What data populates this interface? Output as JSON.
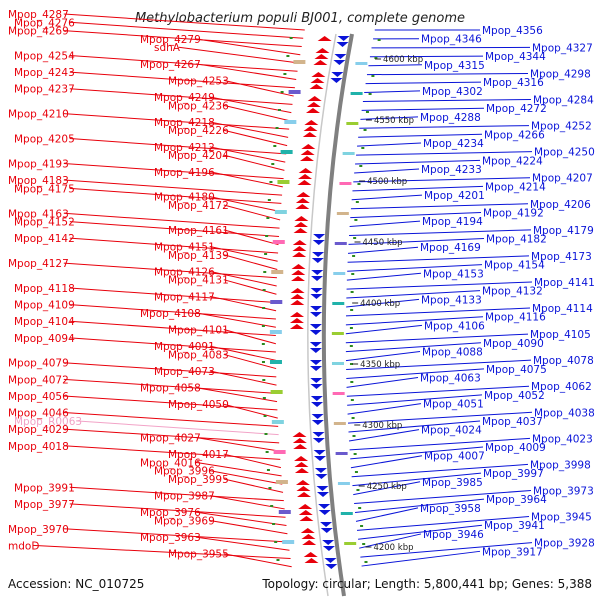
{
  "title": "Methylobacterium populi BJ001, complete genome",
  "footer": {
    "accession": "Accession: NC_010725",
    "summary": "Topology: circular; Length: 5,800,441 bp; Genes: 5,388"
  },
  "colors": {
    "left_strand": "#e8000b",
    "right_strand": "#0a14d8",
    "pseudo": "#f2a3c7",
    "backbone": "#808080",
    "tick": "#2b8a1e"
  },
  "kbp_ticks": [
    "4600 kbp",
    "4550 kbp",
    "4500 kbp",
    "4450 kbp",
    "4400 kbp",
    "4350 kbp",
    "4300 kbp",
    "4250 kbp",
    "4200 kbp"
  ],
  "left_labels": [
    "Mpop_4287",
    "Mpop_4276",
    "Mpop_4269",
    "Mpop_4279",
    "sdhA",
    "Mpop_4254",
    "Mpop_4267",
    "Mpop_4243",
    "Mpop_4253",
    "Mpop_4237",
    "Mpop_4249",
    "Mpop_4236",
    "Mpop_4210",
    "Mpop_4218",
    "Mpop_4226",
    "Mpop_4205",
    "Mpop_4212",
    "Mpop_4204",
    "Mpop_4193",
    "Mpop_4196",
    "Mpop_4183",
    "Mpop_4175",
    "Mpop_4180",
    "Mpop_4172",
    "Mpop_4163",
    "Mpop_4152",
    "Mpop_4161",
    "Mpop_4142",
    "Mpop_4151",
    "Mpop_4139",
    "Mpop_4127",
    "Mpop_4126",
    "Mpop_4131",
    "Mpop_4118",
    "Mpop_4117",
    "Mpop_4109",
    "Mpop_4108",
    "Mpop_4104",
    "Mpop_4101",
    "Mpop_4094",
    "Mpop_4091",
    "Mpop_4083",
    "Mpop_4079",
    "Mpop_4073",
    "Mpop_4072",
    "Mpop_4058",
    "Mpop_4056",
    "Mpop_4050",
    "Mpop_4046",
    "Mpop_R0063",
    "Mpop_4029",
    "Mpop_4027",
    "Mpop_4018",
    "Mpop_4017",
    "Mpop_4016",
    "Mpop_3996",
    "Mpop_3995",
    "Mpop_3991",
    "Mpop_3987",
    "Mpop_3977",
    "Mpop_3976",
    "Mpop_3969",
    "Mpop_3970",
    "Mpop_3963",
    "mdoD",
    "Mpop_3955"
  ],
  "right_labels": [
    "Mpop_4356",
    "Mpop_4346",
    "Mpop_4327",
    "Mpop_4344",
    "Mpop_4315",
    "Mpop_4298",
    "Mpop_4316",
    "Mpop_4302",
    "Mpop_4284",
    "Mpop_4272",
    "Mpop_4288",
    "Mpop_4252",
    "Mpop_4266",
    "Mpop_4234",
    "Mpop_4250",
    "Mpop_4224",
    "Mpop_4233",
    "Mpop_4207",
    "Mpop_4214",
    "Mpop_4201",
    "Mpop_4206",
    "Mpop_4192",
    "Mpop_4194",
    "Mpop_4179",
    "Mpop_4182",
    "Mpop_4169",
    "Mpop_4173",
    "Mpop_4154",
    "Mpop_4153",
    "Mpop_4141",
    "Mpop_4132",
    "Mpop_4133",
    "Mpop_4114",
    "Mpop_4116",
    "Mpop_4106",
    "Mpop_4105",
    "Mpop_4090",
    "Mpop_4088",
    "Mpop_4078",
    "Mpop_4075",
    "Mpop_4063",
    "Mpop_4062",
    "Mpop_4052",
    "Mpop_4051",
    "Mpop_4038",
    "Mpop_4037",
    "Mpop_4024",
    "Mpop_4023",
    "Mpop_4009",
    "Mpop_4007",
    "Mpop_3998",
    "Mpop_3997",
    "Mpop_3985",
    "Mpop_3973",
    "Mpop_3964",
    "Mpop_3958",
    "Mpop_3945",
    "Mpop_3941",
    "Mpop_3946",
    "Mpop_3928",
    "Mpop_3917"
  ]
}
